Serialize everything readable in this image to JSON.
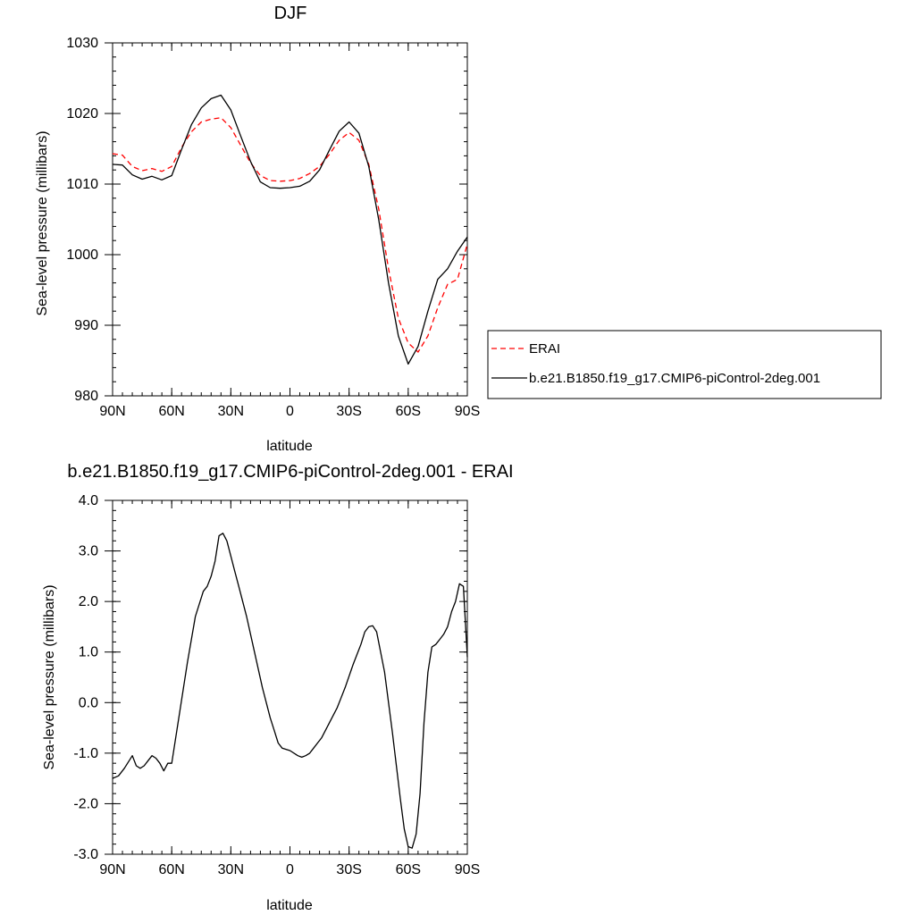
{
  "chart_data": [
    {
      "type": "line",
      "title": "DJF",
      "xlabel": "latitude",
      "ylabel": "Sea-level pressure (millibars)",
      "xlim": [
        90,
        -90
      ],
      "ylim": [
        980,
        1030
      ],
      "xticks": [
        90,
        60,
        30,
        0,
        -30,
        -60,
        -90
      ],
      "xtick_labels": [
        "90N",
        "60N",
        "30N",
        "0",
        "30S",
        "60S",
        "90S"
      ],
      "yticks": [
        980,
        990,
        1000,
        1010,
        1020,
        1030
      ],
      "ytick_labels": [
        "980",
        "990",
        "1000",
        "1010",
        "1020",
        "1030"
      ],
      "legend_position": "right",
      "series": [
        {
          "name": "ERAI",
          "color": "#ff0000",
          "dash": "dashed",
          "x": [
            90,
            85,
            80,
            75,
            70,
            65,
            60,
            55,
            50,
            45,
            40,
            35,
            30,
            25,
            20,
            15,
            10,
            5,
            0,
            -5,
            -10,
            -15,
            -20,
            -25,
            -30,
            -35,
            -40,
            -45,
            -50,
            -55,
            -60,
            -65,
            -70,
            -75,
            -80,
            -85,
            -90
          ],
          "values": [
            1014.3,
            1014.1,
            1012.5,
            1011.9,
            1012.2,
            1011.8,
            1012.5,
            1015.2,
            1017.4,
            1018.8,
            1019.2,
            1019.4,
            1018.0,
            1015.5,
            1013.0,
            1011.2,
            1010.5,
            1010.4,
            1010.5,
            1010.8,
            1011.5,
            1012.5,
            1014.2,
            1016.2,
            1017.3,
            1016.2,
            1012.8,
            1006.5,
            998.0,
            991.0,
            987.5,
            986.2,
            988.5,
            992.5,
            995.8,
            996.5,
            1001.5
          ]
        },
        {
          "name": "b.e21.B1850.f19_g17.CMIP6-piControl-2deg.001",
          "color": "#000000",
          "dash": "solid",
          "x": [
            90,
            85,
            80,
            75,
            70,
            65,
            60,
            55,
            50,
            45,
            40,
            35,
            30,
            25,
            20,
            15,
            10,
            5,
            0,
            -5,
            -10,
            -15,
            -20,
            -25,
            -30,
            -35,
            -40,
            -45,
            -50,
            -55,
            -60,
            -65,
            -70,
            -75,
            -80,
            -85,
            -90
          ],
          "values": [
            1012.8,
            1012.7,
            1011.3,
            1010.7,
            1011.1,
            1010.6,
            1011.2,
            1014.9,
            1018.4,
            1020.8,
            1022.1,
            1022.6,
            1020.5,
            1016.8,
            1013.2,
            1010.3,
            1009.5,
            1009.4,
            1009.5,
            1009.7,
            1010.4,
            1012.0,
            1014.8,
            1017.5,
            1018.8,
            1017.2,
            1012.5,
            1005.0,
            996.0,
            988.5,
            984.5,
            987.0,
            992.0,
            996.5,
            998.0,
            1000.5,
            1002.5
          ]
        }
      ]
    },
    {
      "type": "line",
      "title": "b.e21.B1850.f19_g17.CMIP6-piControl-2deg.001 - ERAI",
      "xlabel": "latitude",
      "ylabel": "Sea-level pressure (millibars)",
      "xlim": [
        90,
        -90
      ],
      "ylim": [
        -3.0,
        4.0
      ],
      "xticks": [
        90,
        60,
        30,
        0,
        -30,
        -60,
        -90
      ],
      "xtick_labels": [
        "90N",
        "60N",
        "30N",
        "0",
        "30S",
        "60S",
        "90S"
      ],
      "yticks": [
        -3,
        -2,
        -1,
        0,
        1,
        2,
        3,
        4
      ],
      "ytick_labels": [
        "-3.0",
        "-2.0",
        "-1.0",
        "0.0",
        "1.0",
        "2.0",
        "3.0",
        "4.0"
      ],
      "series": [
        {
          "color": "#000000",
          "dash": "solid",
          "x": [
            90,
            87,
            84,
            80,
            78,
            76,
            74,
            72,
            70,
            68,
            66,
            64,
            62,
            60,
            56,
            52,
            48,
            44,
            42,
            40,
            38,
            36,
            34,
            32,
            30,
            28,
            26,
            22,
            18,
            14,
            10,
            8,
            6,
            4,
            0,
            -4,
            -6,
            -8,
            -10,
            -12,
            -14,
            -16,
            -20,
            -24,
            -28,
            -32,
            -34,
            -36,
            -38,
            -40,
            -42,
            -44,
            -48,
            -52,
            -56,
            -58,
            -60,
            -62,
            -64,
            -66,
            -68,
            -70,
            -72,
            -74,
            -76,
            -78,
            -80,
            -82,
            -84,
            -86,
            -88,
            -90
          ],
          "values": [
            -1.5,
            -1.45,
            -1.3,
            -1.05,
            -1.25,
            -1.3,
            -1.25,
            -1.15,
            -1.05,
            -1.1,
            -1.2,
            -1.35,
            -1.2,
            -1.2,
            -0.2,
            0.8,
            1.7,
            2.2,
            2.3,
            2.5,
            2.8,
            3.3,
            3.35,
            3.2,
            2.9,
            2.6,
            2.3,
            1.7,
            1.0,
            0.3,
            -0.3,
            -0.55,
            -0.8,
            -0.9,
            -0.95,
            -1.05,
            -1.08,
            -1.05,
            -1.0,
            -0.9,
            -0.8,
            -0.7,
            -0.4,
            -0.1,
            0.3,
            0.75,
            0.95,
            1.15,
            1.4,
            1.5,
            1.52,
            1.4,
            0.6,
            -0.6,
            -1.9,
            -2.5,
            -2.85,
            -2.88,
            -2.6,
            -1.8,
            -0.4,
            0.6,
            1.1,
            1.15,
            1.25,
            1.35,
            1.5,
            1.8,
            2.0,
            2.35,
            2.3,
            0.9
          ]
        }
      ]
    }
  ]
}
